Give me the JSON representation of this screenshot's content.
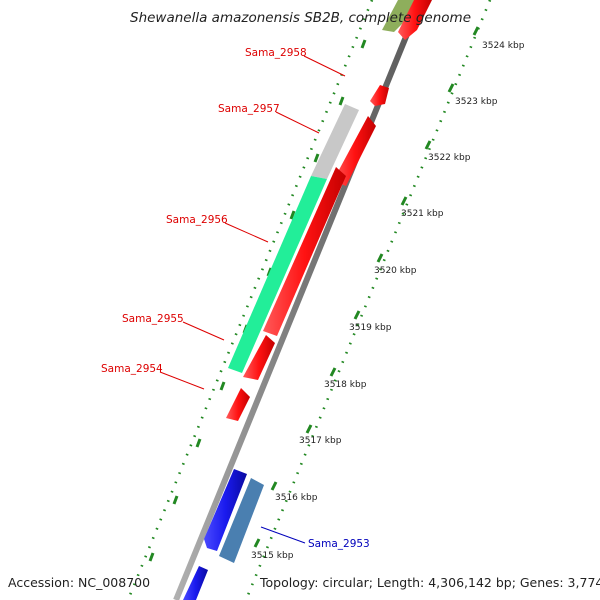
{
  "title": "Shewanella amazonensis SB2B, complete genome",
  "footer": {
    "accession": "Accession: NC_008700",
    "summary": "Topology: circular; Length: 4,306,142 bp; Genes: 3,774"
  },
  "ticks": [
    "3524 kbp",
    "3523 kbp",
    "3522 kbp",
    "3521 kbp",
    "3520 kbp",
    "3519 kbp",
    "3518 kbp",
    "3517 kbp",
    "3516 kbp",
    "3515 kbp"
  ],
  "gene_labels": {
    "sama_2958": "Sama_2958",
    "sama_2957": "Sama_2957",
    "sama_2956": "Sama_2956",
    "sama_2955": "Sama_2955",
    "sama_2954": "Sama_2954",
    "sama_2953": "Sama_2953"
  },
  "colors": {
    "forward_gene": "#ff1a1a",
    "reverse_gene": "#1e1ee6",
    "highlight_teal": "#22ee99",
    "highlight_gray": "#c8c8c8",
    "highlight_steel": "#4a7fb0",
    "tick_marks": "#228822",
    "backbone": "#8a8a8a",
    "forward_label": "#dd0000",
    "reverse_label": "#0000bb"
  }
}
